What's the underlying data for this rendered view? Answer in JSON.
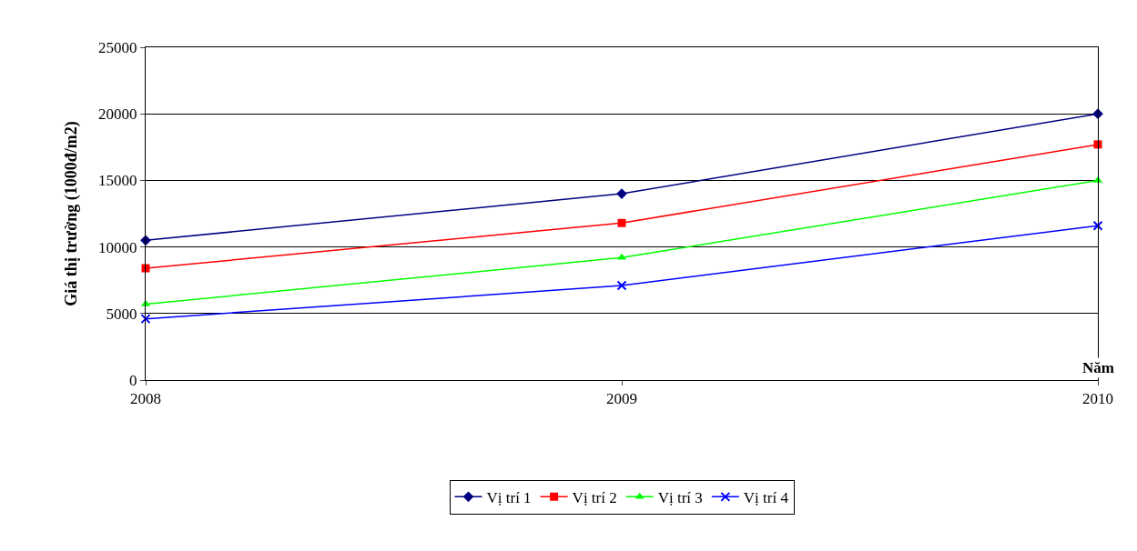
{
  "chart_data": {
    "type": "line",
    "x": [
      2008,
      2009,
      2010
    ],
    "xlim": [
      2008,
      2010
    ],
    "xticks": [
      2008,
      2009,
      2010
    ],
    "ylim": [
      0,
      25000
    ],
    "yticks": [
      0,
      5000,
      10000,
      15000,
      20000,
      25000
    ],
    "xlabel": "Năm",
    "ylabel": "Giá thị trường (1000đ/m2)",
    "grid": "y",
    "legend": "bottom",
    "series": [
      {
        "name": "Vị trí 1",
        "color": "#000080",
        "marker": "diamond",
        "values": [
          10500,
          14000,
          20000
        ]
      },
      {
        "name": "Vị trí 2",
        "color": "#ff0000",
        "marker": "square",
        "values": [
          8400,
          11800,
          17700
        ]
      },
      {
        "name": "Vị trí 3",
        "color": "#00ff00",
        "marker": "triangle",
        "values": [
          5700,
          9200,
          15000
        ]
      },
      {
        "name": "Vị trí 4",
        "color": "#0000ff",
        "marker": "cross",
        "values": [
          4600,
          7100,
          11600
        ]
      }
    ]
  }
}
